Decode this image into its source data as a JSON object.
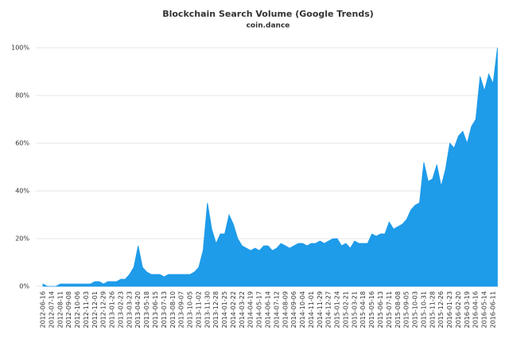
{
  "chart_data": {
    "type": "area",
    "title": "Blockchain Search Volume (Google Trends)",
    "subtitle": "coin.dance",
    "categories": [
      "2012-06-16",
      null,
      "2012-07-14",
      null,
      "2012-08-11",
      null,
      "2012-09-08",
      null,
      "2012-10-06",
      null,
      "2012-11-03",
      null,
      "2012-12-01",
      null,
      "2012-12-29",
      null,
      "2013-01-26",
      null,
      "2013-02-23",
      null,
      "2013-03-23",
      null,
      "2013-04-20",
      null,
      "2013-05-18",
      null,
      "2013-06-15",
      null,
      "2013-07-13",
      null,
      "2013-08-10",
      null,
      "2013-09-07",
      null,
      "2013-10-05",
      null,
      "2013-11-02",
      null,
      "2013-11-30",
      null,
      "2013-12-28",
      null,
      "2014-01-25",
      null,
      "2014-02-22",
      null,
      "2014-03-22",
      null,
      "2014-04-19",
      null,
      "2014-05-17",
      null,
      "2014-06-14",
      null,
      "2014-07-12",
      null,
      "2014-08-09",
      null,
      "2014-09-06",
      null,
      "2014-10-04",
      null,
      "2014-11-01",
      null,
      "2014-11-29",
      null,
      "2014-12-27",
      null,
      "2015-01-24",
      null,
      "2015-02-21",
      null,
      "2015-03-21",
      null,
      "2015-04-18",
      null,
      "2015-05-16",
      null,
      "2015-06-13",
      null,
      "2015-07-11",
      null,
      "2015-08-08",
      null,
      "2015-09-05",
      null,
      "2015-10-03",
      null,
      "2015-10-31",
      null,
      "2015-11-28",
      null,
      "2015-12-26",
      null,
      "2016-01-23",
      null,
      "2016-02-20",
      null,
      "2016-03-19",
      null,
      "2016-04-16",
      null,
      "2016-05-14",
      null,
      "2016-06-11",
      null
    ],
    "values": [
      1,
      0,
      0,
      0,
      1,
      1,
      1,
      1,
      1,
      1,
      1,
      1,
      2,
      2,
      1,
      2,
      2,
      2,
      3,
      3,
      5,
      8,
      17,
      8,
      6,
      5,
      5,
      5,
      4,
      5,
      5,
      5,
      5,
      5,
      5,
      6,
      8,
      15,
      35,
      24,
      18,
      22,
      22,
      30,
      26,
      20,
      17,
      16,
      15,
      16,
      15,
      17,
      17,
      15,
      16,
      18,
      17,
      16,
      17,
      18,
      18,
      17,
      18,
      18,
      19,
      18,
      19,
      20,
      20,
      17,
      18,
      16,
      19,
      18,
      18,
      18,
      22,
      21,
      22,
      22,
      27,
      24,
      25,
      26,
      28,
      32,
      34,
      35,
      52,
      44,
      45,
      51,
      42,
      49,
      60,
      58,
      63,
      65,
      60,
      67,
      70,
      88,
      82,
      89,
      85,
      100
    ],
    "color": "#1e9be9",
    "ylim": [
      0,
      100
    ],
    "yticks": [
      {
        "value": 0,
        "label": "0%"
      },
      {
        "value": 20,
        "label": "20%"
      },
      {
        "value": 40,
        "label": "40%"
      },
      {
        "value": 60,
        "label": "60%"
      },
      {
        "value": 80,
        "label": "80%"
      },
      {
        "value": 100,
        "label": "100%"
      }
    ],
    "grid": true
  }
}
